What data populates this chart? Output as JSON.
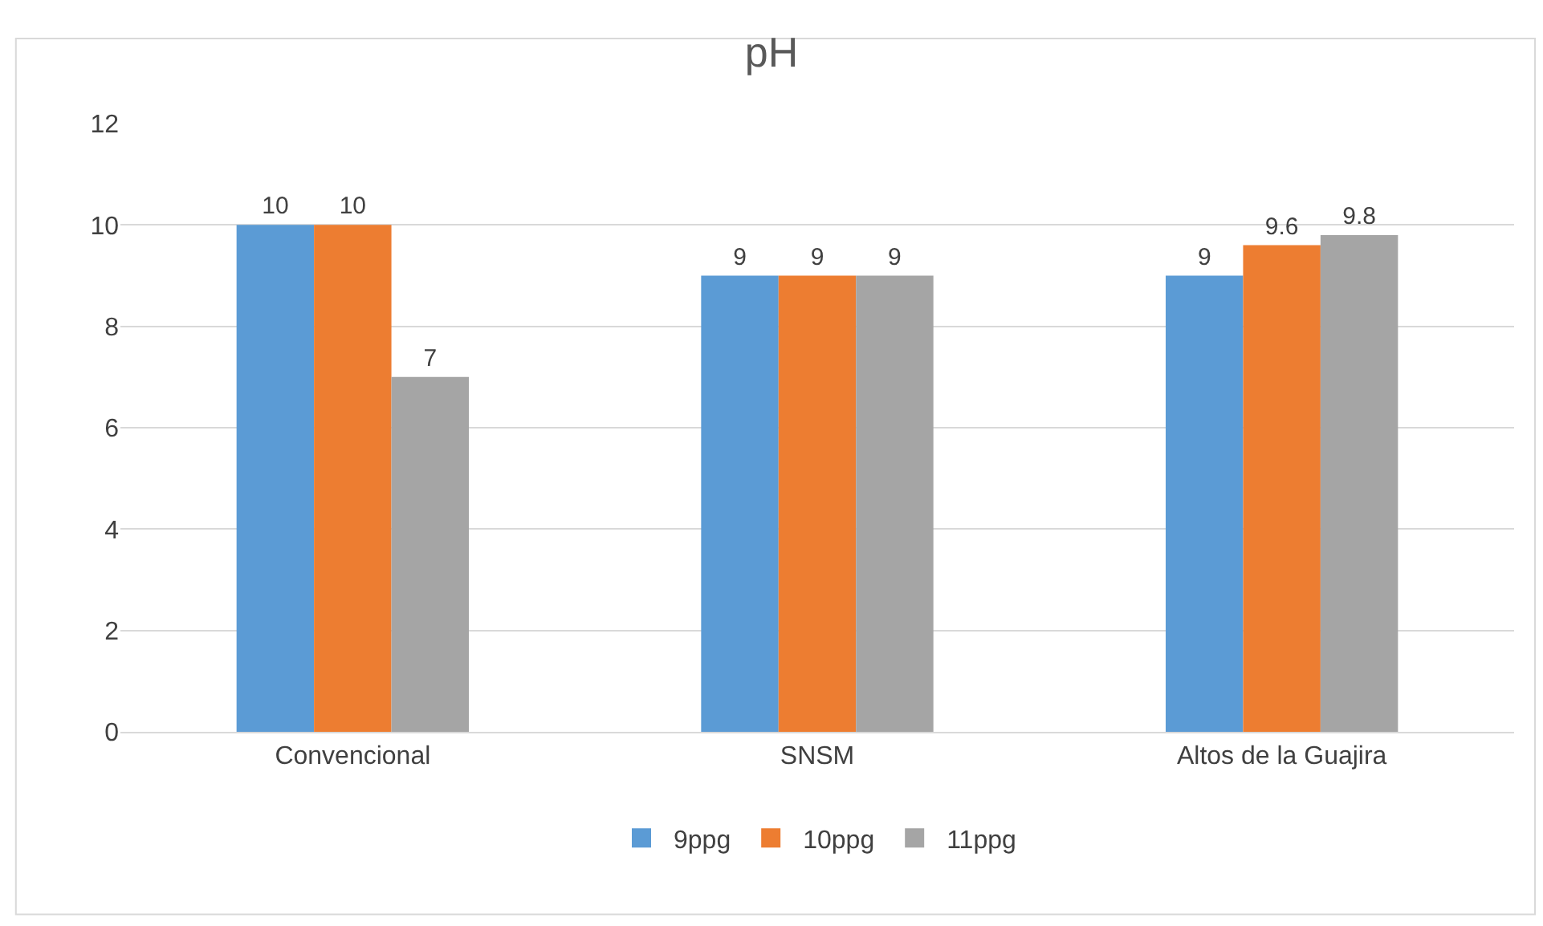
{
  "chart_data": {
    "type": "bar",
    "title": "pH",
    "categories": [
      "Convencional",
      "SNSM",
      "Altos de la Guajira"
    ],
    "series": [
      {
        "name": "9ppg",
        "color": "#5b9bd5",
        "values": [
          10,
          9,
          9
        ]
      },
      {
        "name": "10ppg",
        "color": "#ed7d31",
        "values": [
          10,
          9,
          9.6
        ]
      },
      {
        "name": "11ppg",
        "color": "#a5a5a5",
        "values": [
          7,
          9,
          9.8
        ]
      }
    ],
    "ylim": [
      0,
      12
    ],
    "yticks": [
      0,
      2,
      4,
      6,
      8,
      10,
      12
    ],
    "grid": "y",
    "legend": "bottom",
    "data_labels": true
  }
}
